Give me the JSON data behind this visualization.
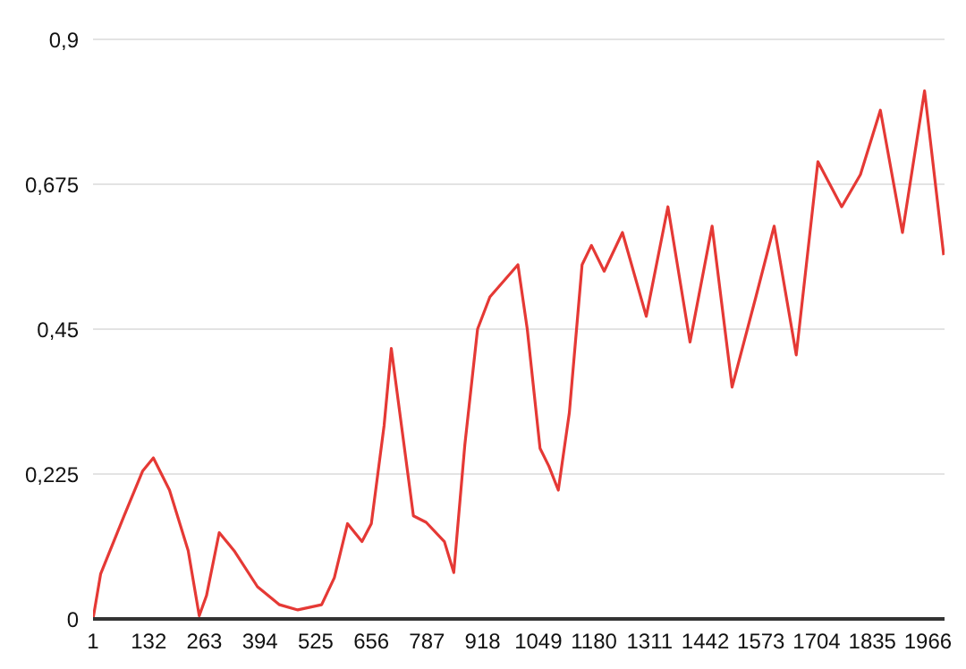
{
  "chart_data": {
    "type": "line",
    "xlim": [
      1,
      2005
    ],
    "ylim": [
      0,
      0.9
    ],
    "xticks": [
      1,
      132,
      263,
      394,
      525,
      656,
      787,
      918,
      1049,
      1180,
      1311,
      1442,
      1573,
      1704,
      1835,
      1966
    ],
    "yticks": [
      0,
      {
        "value": 0.225,
        "label": "0,225"
      },
      {
        "value": 0.45,
        "label": "0,45"
      },
      {
        "value": 0.675,
        "label": "0,675"
      },
      {
        "value": 0.9,
        "label": "0,9"
      }
    ],
    "grid": "y",
    "legend": false,
    "marker": "none",
    "line_style": "solid",
    "series": [
      {
        "color": "#e53935",
        "x": [
          1,
          19,
          74,
          118,
          143,
          181,
          225,
          251,
          268,
          298,
          333,
          388,
          440,
          483,
          539,
          569,
          600,
          634,
          656,
          686,
          703,
          729,
          755,
          785,
          828,
          850,
          876,
          906,
          935,
          1001,
          1023,
          1053,
          1074,
          1096,
          1122,
          1152,
          1174,
          1204,
          1247,
          1303,
          1354,
          1406,
          1458,
          1505,
          1561,
          1604,
          1656,
          1707,
          1763,
          1807,
          1854,
          1906,
          1958,
          2003
        ],
        "values": [
          0,
          0.07,
          0.16,
          0.23,
          0.25,
          0.2,
          0.106,
          0.005,
          0.036,
          0.134,
          0.106,
          0.05,
          0.022,
          0.014,
          0.022,
          0.064,
          0.148,
          0.12,
          0.148,
          0.3,
          0.42,
          0.29,
          0.16,
          0.15,
          0.12,
          0.072,
          0.27,
          0.45,
          0.5,
          0.55,
          0.45,
          0.265,
          0.237,
          0.2,
          0.32,
          0.55,
          0.58,
          0.54,
          0.6,
          0.47,
          0.64,
          0.43,
          0.61,
          0.36,
          0.5,
          0.61,
          0.41,
          0.71,
          0.64,
          0.69,
          0.79,
          0.6,
          0.82,
          0.565
        ]
      }
    ]
  }
}
